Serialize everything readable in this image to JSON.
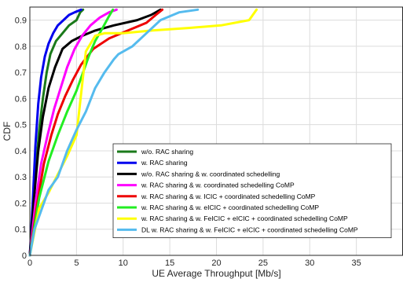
{
  "chart_data": {
    "type": "line",
    "title": "",
    "xlabel": "UE Average Throughput [Mb/s]",
    "ylabel": "CDF",
    "xlim": [
      0,
      40
    ],
    "ylim": [
      0,
      0.95
    ],
    "x_ticks": [
      0,
      5,
      10,
      15,
      20,
      25,
      30,
      35
    ],
    "y_ticks": [
      0,
      0.1,
      0.2,
      0.3,
      0.4,
      0.5,
      0.6,
      0.7,
      0.8,
      0.9
    ],
    "grid": true,
    "legend_position": "lower-right",
    "series": [
      {
        "name": "w/o. RAC sharing",
        "color": "#1a7a1a",
        "x": [
          0,
          0.3,
          0.7,
          1.0,
          1.4,
          1.8,
          2.2,
          2.8,
          3.5,
          4.2,
          5.0,
          5.4,
          5.7
        ],
        "y": [
          0,
          0.15,
          0.35,
          0.48,
          0.6,
          0.7,
          0.77,
          0.82,
          0.85,
          0.88,
          0.9,
          0.93,
          0.94
        ]
      },
      {
        "name": "w. RAC sharing",
        "color": "#0000ee",
        "x": [
          0,
          0.3,
          0.6,
          0.9,
          1.2,
          1.6,
          2.0,
          2.5,
          3.0,
          3.6,
          4.2,
          4.8,
          5.5
        ],
        "y": [
          0,
          0.2,
          0.42,
          0.58,
          0.68,
          0.76,
          0.81,
          0.85,
          0.88,
          0.9,
          0.92,
          0.93,
          0.94
        ]
      },
      {
        "name": "w/o. RAC sharing & w. coordinated schedelling",
        "color": "#000000",
        "x": [
          0,
          0.4,
          0.9,
          1.4,
          2.0,
          2.7,
          3.5,
          4.5,
          5.6,
          7.0,
          9.0,
          11.5,
          13.0,
          14.0
        ],
        "y": [
          0,
          0.2,
          0.4,
          0.53,
          0.64,
          0.72,
          0.79,
          0.82,
          0.84,
          0.86,
          0.88,
          0.9,
          0.92,
          0.94
        ]
      },
      {
        "name": "w. RAC sharing & w. coordinated schedelling CoMP",
        "color": "#ff00ff",
        "x": [
          0,
          0.6,
          1.2,
          1.9,
          2.6,
          3.3,
          4.0,
          4.8,
          5.6,
          6.5,
          7.5,
          8.5,
          9.3
        ],
        "y": [
          0,
          0.2,
          0.35,
          0.46,
          0.56,
          0.64,
          0.72,
          0.79,
          0.84,
          0.88,
          0.91,
          0.93,
          0.94
        ]
      },
      {
        "name": "w. RAC sharing & w. ICIC + coordinated schedelling CoMP",
        "color": "#ee0000",
        "x": [
          0,
          0.8,
          1.5,
          2.3,
          3.0,
          3.8,
          4.6,
          5.5,
          6.8,
          8.5,
          10.5,
          12.5,
          13.5,
          14.2
        ],
        "y": [
          0,
          0.2,
          0.35,
          0.46,
          0.54,
          0.61,
          0.67,
          0.73,
          0.79,
          0.83,
          0.86,
          0.89,
          0.92,
          0.94
        ]
      },
      {
        "name": "w. RAC sharing & w. eICIC + coordinated schedelling CoMP",
        "color": "#22ee22",
        "x": [
          0,
          1.0,
          2.0,
          3.0,
          4.0,
          5.0,
          5.7,
          6.3,
          7.0,
          7.8,
          8.4,
          8.9
        ],
        "y": [
          0,
          0.22,
          0.36,
          0.46,
          0.55,
          0.63,
          0.7,
          0.76,
          0.82,
          0.87,
          0.91,
          0.94
        ]
      },
      {
        "name": "w. RAC sharing & w. FeICIC + eICIC + coordinated schedelling CoMP",
        "color": "#ffff00",
        "x": [
          0,
          1.0,
          2.0,
          3.0,
          4.0,
          5.0,
          5.5,
          6.0,
          7.0,
          8.0,
          10.0,
          13.0,
          17.0,
          20.5,
          23.5,
          24.3
        ],
        "y": [
          0,
          0.18,
          0.24,
          0.31,
          0.38,
          0.46,
          0.62,
          0.78,
          0.84,
          0.85,
          0.85,
          0.86,
          0.87,
          0.88,
          0.9,
          0.94
        ]
      },
      {
        "name": "DL w. RAC sharing & w. FeICIC + eICIC + coordinated schedelling CoMP",
        "color": "#55bbee",
        "x": [
          0,
          0.5,
          1.0,
          2.0,
          3.0,
          4.0,
          5.0,
          6.0,
          7.0,
          8.0,
          9.0,
          9.5,
          11.0,
          12.5,
          14.0,
          16.0,
          18.0
        ],
        "y": [
          0,
          0.1,
          0.15,
          0.25,
          0.3,
          0.4,
          0.48,
          0.55,
          0.64,
          0.7,
          0.75,
          0.77,
          0.8,
          0.85,
          0.9,
          0.93,
          0.94
        ]
      }
    ]
  }
}
